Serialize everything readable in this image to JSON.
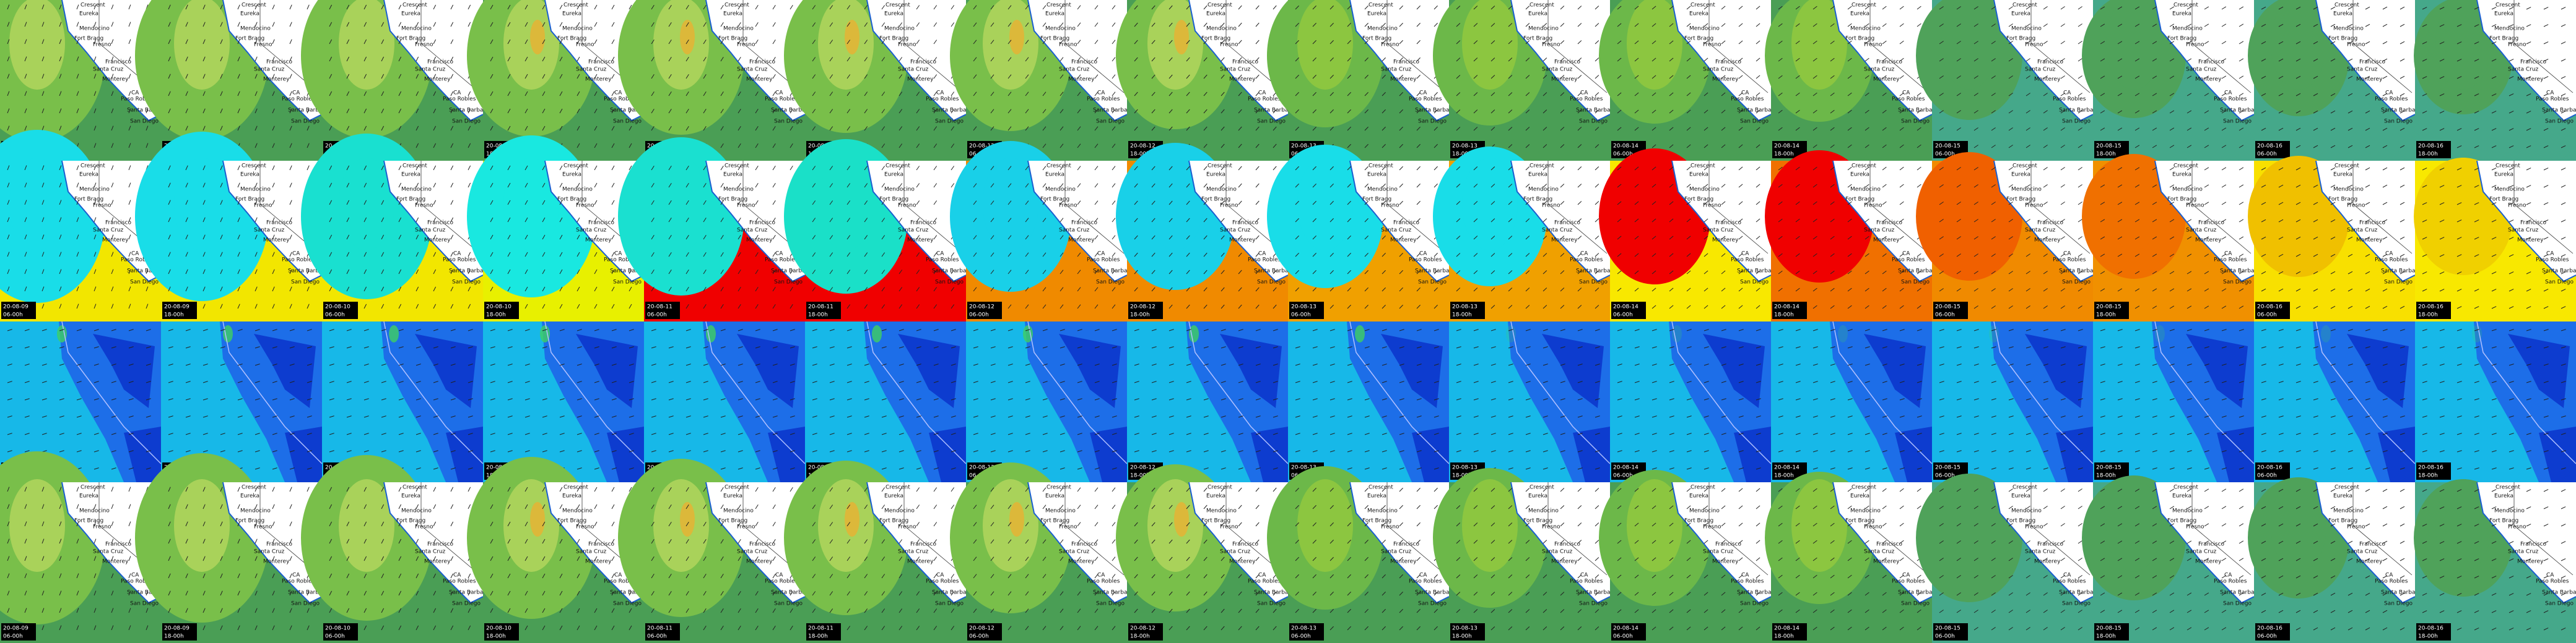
{
  "dates": [
    "20-08-09",
    "20-08-09",
    "20-08-10",
    "20-08-10",
    "20-08-11",
    "20-08-11",
    "20-08-12",
    "20-08-12",
    "20-08-13",
    "20-08-13",
    "20-08-14",
    "20-08-14",
    "20-08-15",
    "20-08-15",
    "20-08-16",
    "20-08-16"
  ],
  "times": [
    "06-00h",
    "18-00h",
    "06-00h",
    "18-00h",
    "06-00h",
    "18-00h",
    "06-00h",
    "18-00h",
    "06-00h",
    "18-00h",
    "06-00h",
    "18-00h",
    "06-00h",
    "18-00h",
    "06-00h",
    "18-00h"
  ],
  "places": [
    "Crescent",
    "Eureka",
    "Mendocino",
    "Fort Bragg",
    "Fresno",
    "Francisco",
    "Santa Cruz",
    "Monterey",
    "CA",
    "Paso Robles",
    "Santa Barbara",
    "San Diego"
  ]
}
